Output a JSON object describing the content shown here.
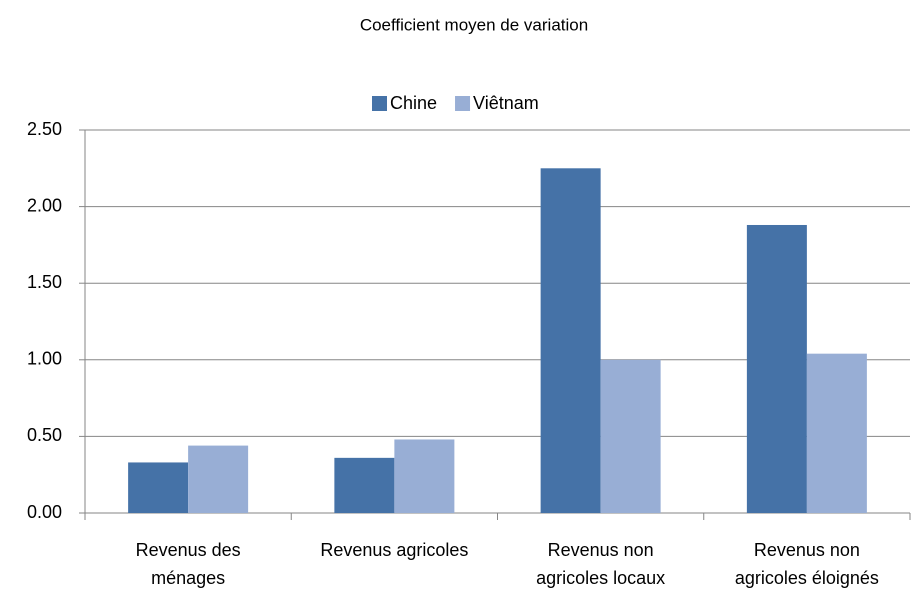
{
  "chart_data": {
    "type": "bar",
    "title": "Coefficient moyen de variation",
    "categories": [
      [
        "Revenus des",
        "ménages"
      ],
      [
        "Revenus agricoles"
      ],
      [
        "Revenus non",
        "agricoles locaux"
      ],
      [
        "Revenus non",
        "agricoles éloignés"
      ]
    ],
    "series": [
      {
        "name": "Chine",
        "color": "#4572a7",
        "values": [
          0.33,
          0.36,
          2.25,
          1.88
        ]
      },
      {
        "name": "Viêtnam",
        "color": "#98aed5",
        "values": [
          0.44,
          0.48,
          1.0,
          1.04
        ]
      }
    ],
    "ylim": [
      0,
      2.5
    ],
    "yticks": [
      {
        "value": 0,
        "label": "0.00"
      },
      {
        "value": 0.5,
        "label": "0.50"
      },
      {
        "value": 1,
        "label": "1.00"
      },
      {
        "value": 1.5,
        "label": "1.50"
      },
      {
        "value": 2,
        "label": "2.00"
      },
      {
        "value": 2.5,
        "label": "2.50"
      }
    ],
    "grid": true,
    "legend": "top"
  }
}
